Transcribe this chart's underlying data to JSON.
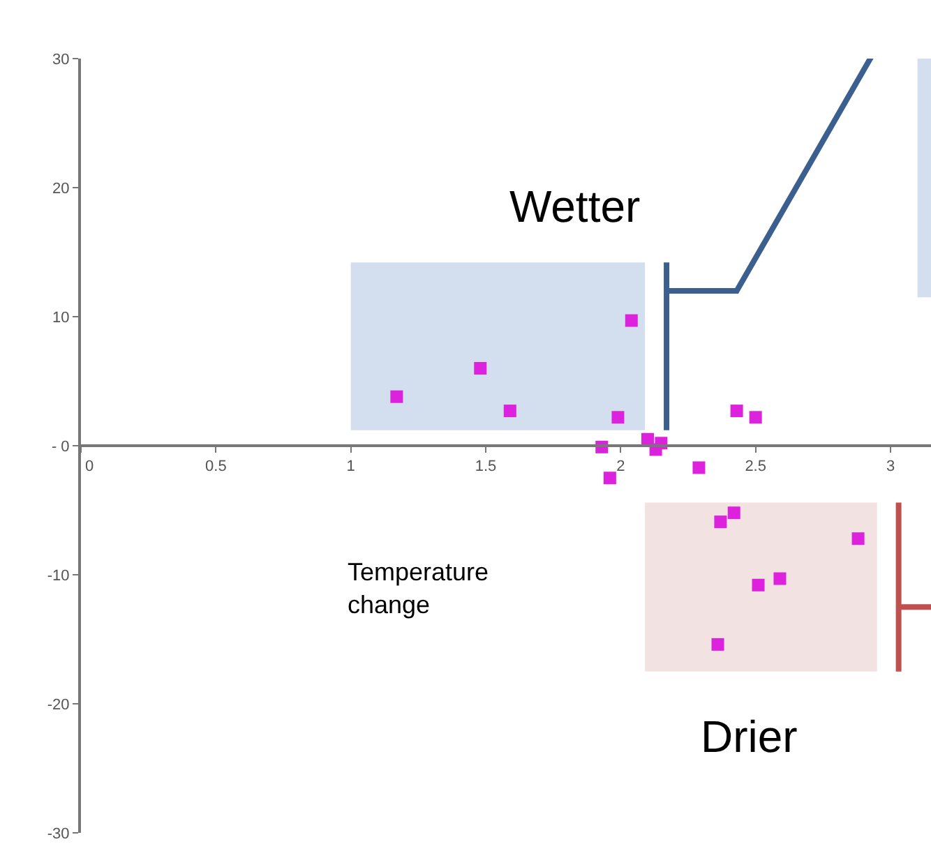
{
  "chart_data": {
    "type": "scatter",
    "xlabel": "Temperature change",
    "x": [
      1.17,
      1.48,
      1.59,
      2.04,
      1.99,
      1.93,
      1.96,
      2.1,
      2.13,
      2.15,
      2.29,
      2.43,
      2.5,
      2.37,
      2.42,
      2.88,
      2.51,
      2.59,
      2.36
    ],
    "values": [
      3.8,
      6.0,
      2.7,
      9.7,
      2.2,
      -0.1,
      -2.5,
      0.5,
      -0.3,
      0.2,
      -1.7,
      2.7,
      2.2,
      -5.9,
      -5.2,
      -7.2,
      -10.8,
      -10.3,
      -15.4
    ],
    "color": "#dd22dd",
    "marker": "square",
    "grid": false,
    "xlim": [
      0,
      3.15
    ],
    "xticks": [
      0,
      0.5,
      1,
      1.5,
      2,
      2.5,
      3
    ],
    "ylim": [
      -30,
      30
    ],
    "yticks": [
      -30,
      -20,
      -10,
      {
        "value": 0,
        "label": "- 0"
      },
      10,
      20,
      30
    ],
    "annotations": [
      "Wetter",
      "Drier"
    ]
  }
}
